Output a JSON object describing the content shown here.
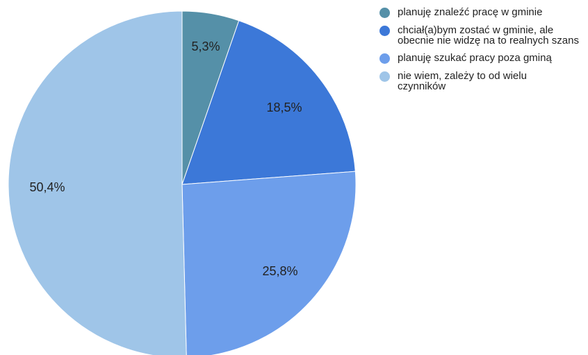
{
  "chart_data": {
    "type": "pie",
    "categories": [
      "planuję znaleźć pracę w gminie",
      "chciał(a)bym zostać w gminie, ale obecnie nie widzę na to realnych szans",
      "planuję szukać pracy poza gminą",
      "nie wiem, zależy to od wielu czynników"
    ],
    "values": [
      5.3,
      18.5,
      25.8,
      50.4
    ],
    "value_labels": [
      "5,3%",
      "18,5%",
      "25,8%",
      "50,4%"
    ],
    "colors": [
      "#5590a8",
      "#3c78d8",
      "#6d9eeb",
      "#9fc5e8"
    ],
    "legend_position": "top-right",
    "start_angle": "12 o'clock",
    "direction": "clockwise"
  }
}
